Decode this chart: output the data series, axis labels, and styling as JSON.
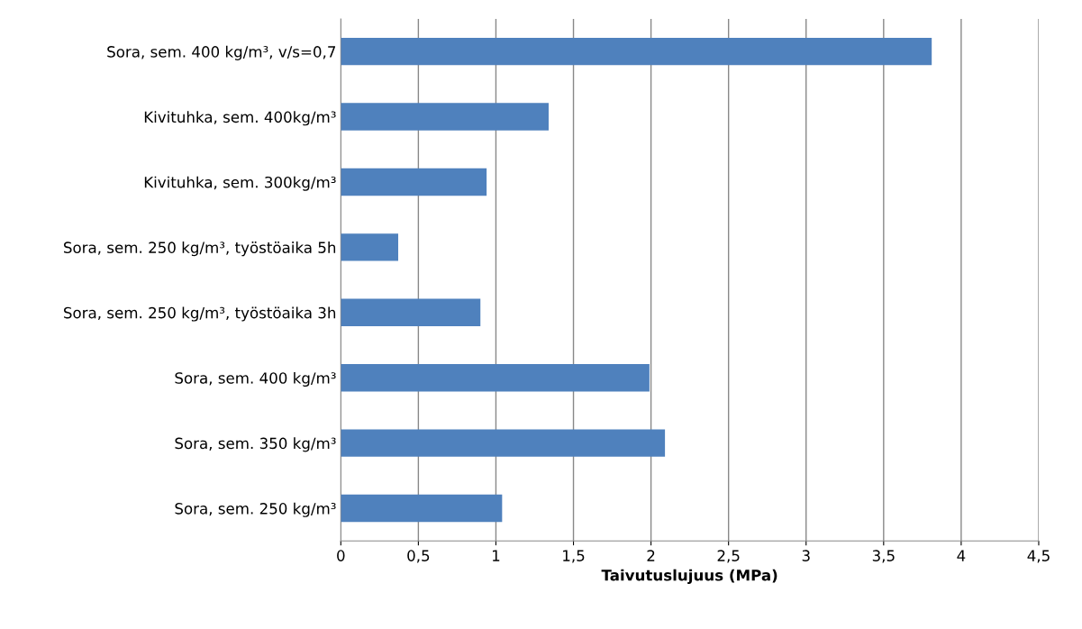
{
  "chart_data": {
    "type": "bar",
    "orientation": "horizontal",
    "xlabel": "Taivutuslujuus (MPa)",
    "categories": [
      "Sora, sem. 400 kg/m³, v/s=0,7",
      "Kivituhka, sem. 400kg/m³",
      "Kivituhka, sem. 300kg/m³",
      "Sora, sem. 250 kg/m³, työstöaika 5h",
      "Sora, sem. 250 kg/m³, työstöaika 3h",
      "Sora, sem. 400 kg/m³",
      "Sora, sem. 350 kg/m³",
      "Sora, sem. 250 kg/m³"
    ],
    "values": [
      3.81,
      1.34,
      0.94,
      0.37,
      0.9,
      1.99,
      2.09,
      1.04
    ],
    "color": "#4f81bd",
    "xlim": [
      0,
      4.5
    ],
    "xticks": [
      0,
      {
        "value": 0.5,
        "label": "0,5"
      },
      1,
      {
        "value": 1.5,
        "label": "1,5"
      },
      2,
      {
        "value": 2.5,
        "label": "2,5"
      },
      3,
      {
        "value": 3.5,
        "label": "3,5"
      },
      4,
      {
        "value": 4.5,
        "label": "4,5"
      }
    ],
    "grid": "x"
  }
}
